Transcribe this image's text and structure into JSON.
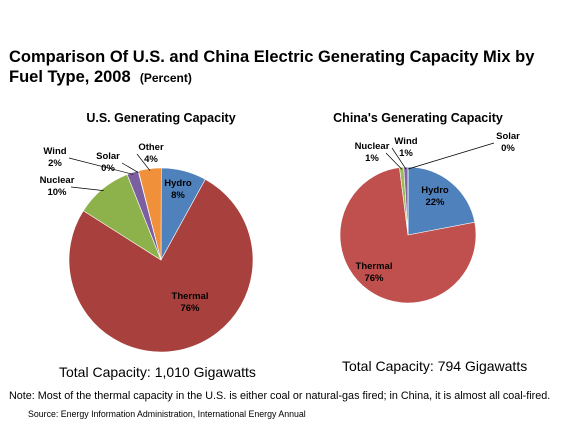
{
  "title": {
    "main": "Comparison Of U.S. and China Electric Generating Capacity Mix by Fuel Type, 2008",
    "sub": "(Percent)"
  },
  "chart_data": [
    {
      "type": "pie",
      "title": "U.S. Generating Capacity",
      "slices": [
        {
          "name": "Hydro",
          "value": 8,
          "label": "8%",
          "color": "#4f81bd"
        },
        {
          "name": "Thermal",
          "value": 76,
          "label": "76%",
          "color": "#a8403d"
        },
        {
          "name": "Nuclear",
          "value": 10,
          "label": "10%",
          "color": "#8eb24b"
        },
        {
          "name": "Wind",
          "value": 2,
          "label": "2%",
          "color": "#7c5fa0"
        },
        {
          "name": "Solar",
          "value": 0,
          "label": "0%",
          "color": "#4bacc6"
        },
        {
          "name": "Other",
          "value": 4,
          "label": "4%",
          "color": "#f0903a"
        }
      ],
      "total": "Total Capacity:  1,010 Gigawatts"
    },
    {
      "type": "pie",
      "title": "China's Generating Capacity",
      "slices": [
        {
          "name": "Hydro",
          "value": 22,
          "label": "22%",
          "color": "#4f81bd"
        },
        {
          "name": "Thermal",
          "value": 76,
          "label": "76%",
          "color": "#c0504d"
        },
        {
          "name": "Nuclear",
          "value": 1,
          "label": "1%",
          "color": "#9bbb59"
        },
        {
          "name": "Wind",
          "value": 1,
          "label": "1%",
          "color": "#8064a2"
        },
        {
          "name": "Solar",
          "value": 0,
          "label": "0%",
          "color": "#4bacc6"
        }
      ],
      "total": "Total Capacity:  794 Gigawatts"
    }
  ],
  "note": "Note: Most of the thermal capacity in the U.S. is either coal or natural-gas fired; in China, it is almost all coal-fired.",
  "source": "Source: Energy Information Administration, International Energy Annual"
}
